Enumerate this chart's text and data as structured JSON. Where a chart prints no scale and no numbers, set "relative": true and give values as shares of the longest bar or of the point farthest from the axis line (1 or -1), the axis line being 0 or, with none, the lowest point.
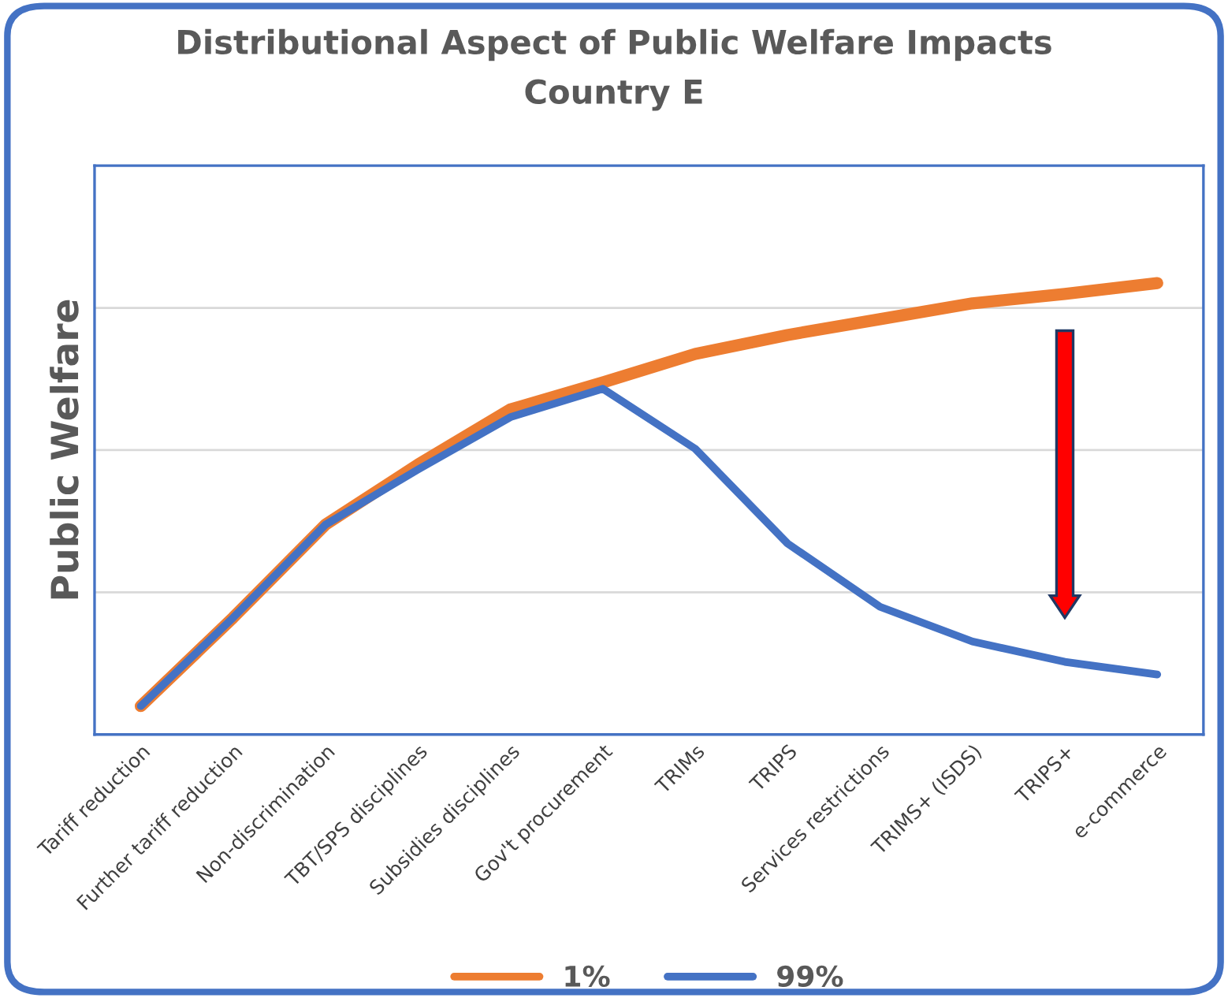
{
  "chart_data": {
    "type": "line",
    "title": "Distributional Aspect of Public Welfare Impacts",
    "subtitle": "Country E",
    "ylabel": "Public Welfare",
    "relative": true,
    "grid": "y",
    "legend": "bottom",
    "marker": "none",
    "line_style": "solid",
    "categories": [
      "Tariff reduction",
      "Further tariff reduction",
      "Non-discrimination",
      "TBT/SPS disciplines",
      "Subsidies disciplines",
      "Gov't procurement",
      "TRIMs",
      "TRIPS",
      "Services restrictions",
      "TRIMS+ (ISDS)",
      "TRIPS+",
      "e-commerce"
    ],
    "series": [
      {
        "name": "1%",
        "color": "#ed7d31",
        "values": [
          0.063,
          0.259,
          0.465,
          0.598,
          0.72,
          0.78,
          0.843,
          0.885,
          0.92,
          0.955,
          0.976,
          1
        ]
      },
      {
        "name": "99%",
        "color": "#4472c4",
        "values": [
          0.063,
          0.259,
          0.465,
          0.587,
          0.703,
          0.766,
          0.633,
          0.423,
          0.283,
          0.206,
          0.161,
          0.133
        ]
      }
    ]
  }
}
